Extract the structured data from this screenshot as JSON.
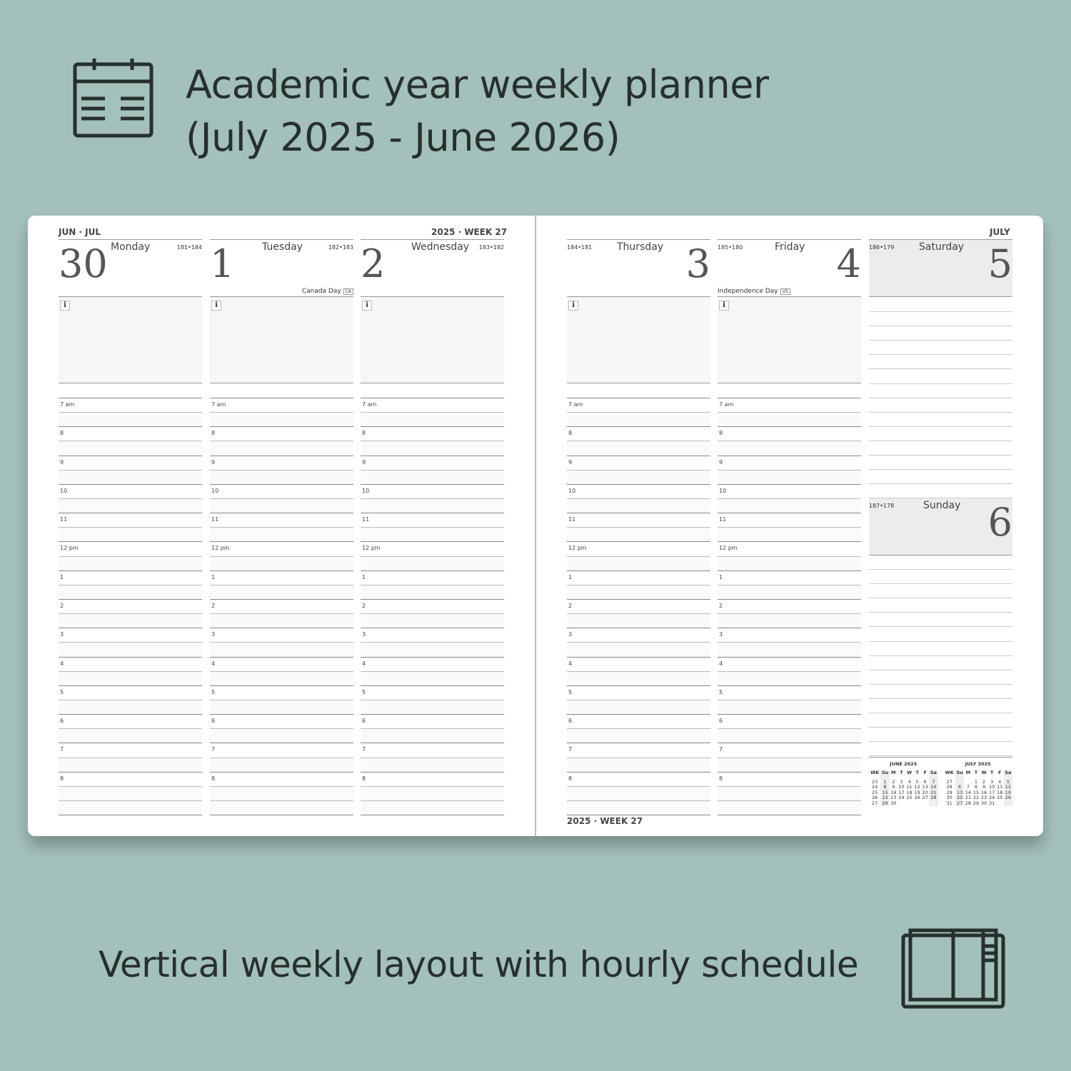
{
  "header": {
    "title_line1": "Academic year weekly planner",
    "title_line2": "(July 2025 - June 2026)",
    "calendar_icon": "calendar-icon"
  },
  "footer_caption": "Vertical weekly layout with hourly schedule",
  "book_icon": "open-planner-icon",
  "planner": {
    "left_top": "JUN · JUL",
    "left_week": "2025 · WEEK 27",
    "right_month": "JULY",
    "bottom_week": "2025 · WEEK 27",
    "info_label": "i",
    "hours": [
      "7 am",
      "8",
      "9",
      "10",
      "11",
      "12 pm",
      "1",
      "2",
      "3",
      "4",
      "5",
      "6",
      "7",
      "8"
    ],
    "days": [
      {
        "name": "Monday",
        "date": "30",
        "count": "181•184",
        "holiday": "",
        "holiday_code": ""
      },
      {
        "name": "Tuesday",
        "date": "1",
        "count": "182•183",
        "holiday": "Canada Day",
        "holiday_code": "CA"
      },
      {
        "name": "Wednesday",
        "date": "2",
        "count": "183•182",
        "holiday": "",
        "holiday_code": ""
      },
      {
        "name": "Thursday",
        "date": "3",
        "count": "184•181",
        "holiday": "",
        "holiday_code": ""
      },
      {
        "name": "Friday",
        "date": "4",
        "count": "185•180",
        "holiday": "Independence Day",
        "holiday_code": "US"
      }
    ],
    "saturday": {
      "name": "Saturday",
      "date": "5",
      "count": "186•179"
    },
    "sunday": {
      "name": "Sunday",
      "date": "6",
      "count": "187•178"
    },
    "mini_calendars": [
      {
        "title": "JUNE  2025",
        "head": [
          "WK",
          "Su",
          "M",
          "T",
          "W",
          "T",
          "F",
          "Sa"
        ],
        "rows": [
          [
            "23",
            "1",
            "2",
            "3",
            "4",
            "5",
            "6",
            "7"
          ],
          [
            "24",
            "8",
            "9",
            "10",
            "11",
            "12",
            "13",
            "14"
          ],
          [
            "25",
            "15",
            "16",
            "17",
            "18",
            "19",
            "20",
            "21"
          ],
          [
            "26",
            "22",
            "23",
            "24",
            "25",
            "26",
            "27",
            "28"
          ],
          [
            "27",
            "29",
            "30",
            "",
            "",
            "",
            "",
            ""
          ]
        ]
      },
      {
        "title": "JULY  2025",
        "head": [
          "WK",
          "Su",
          "M",
          "T",
          "W",
          "T",
          "F",
          "Sa"
        ],
        "rows": [
          [
            "27",
            "",
            "",
            "1",
            "2",
            "3",
            "4",
            "5"
          ],
          [
            "28",
            "6",
            "7",
            "8",
            "9",
            "10",
            "11",
            "12"
          ],
          [
            "29",
            "13",
            "14",
            "15",
            "16",
            "17",
            "18",
            "19"
          ],
          [
            "30",
            "20",
            "21",
            "22",
            "23",
            "24",
            "25",
            "26"
          ],
          [
            "31",
            "27",
            "28",
            "29",
            "30",
            "31",
            "",
            ""
          ]
        ]
      }
    ]
  }
}
